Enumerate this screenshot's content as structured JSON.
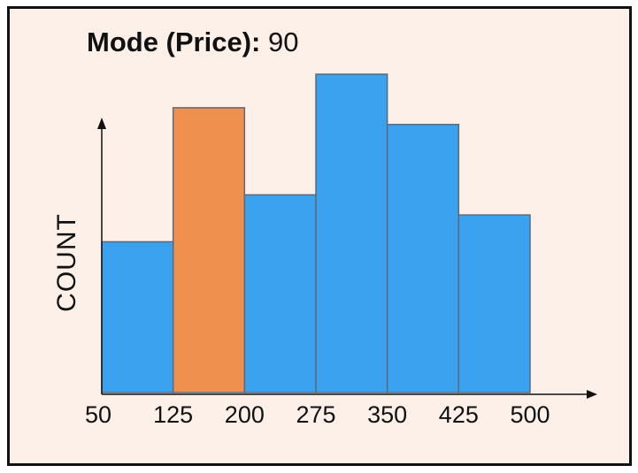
{
  "title": {
    "label": "Mode (Price):",
    "value": "90"
  },
  "chart_data": {
    "type": "bar",
    "ylabel": "COUNT",
    "xlabel": "",
    "x_ticks": [
      "50",
      "125",
      "200",
      "275",
      "350",
      "425",
      "500"
    ],
    "bins": [
      {
        "start": 50,
        "end": 125,
        "value": 4.5,
        "highlight": false
      },
      {
        "start": 125,
        "end": 200,
        "value": 8.5,
        "highlight": true
      },
      {
        "start": 200,
        "end": 275,
        "value": 5.9,
        "highlight": false
      },
      {
        "start": 275,
        "end": 350,
        "value": 9.5,
        "highlight": false
      },
      {
        "start": 350,
        "end": 425,
        "value": 8.0,
        "highlight": false
      },
      {
        "start": 425,
        "end": 500,
        "value": 5.3,
        "highlight": false
      }
    ],
    "ylim": [
      0,
      10
    ],
    "grid": false,
    "colors": {
      "bar": "#3ba2ef",
      "highlight": "#f0904e",
      "edge": "#5a6a7a",
      "axis": "#111111"
    }
  }
}
